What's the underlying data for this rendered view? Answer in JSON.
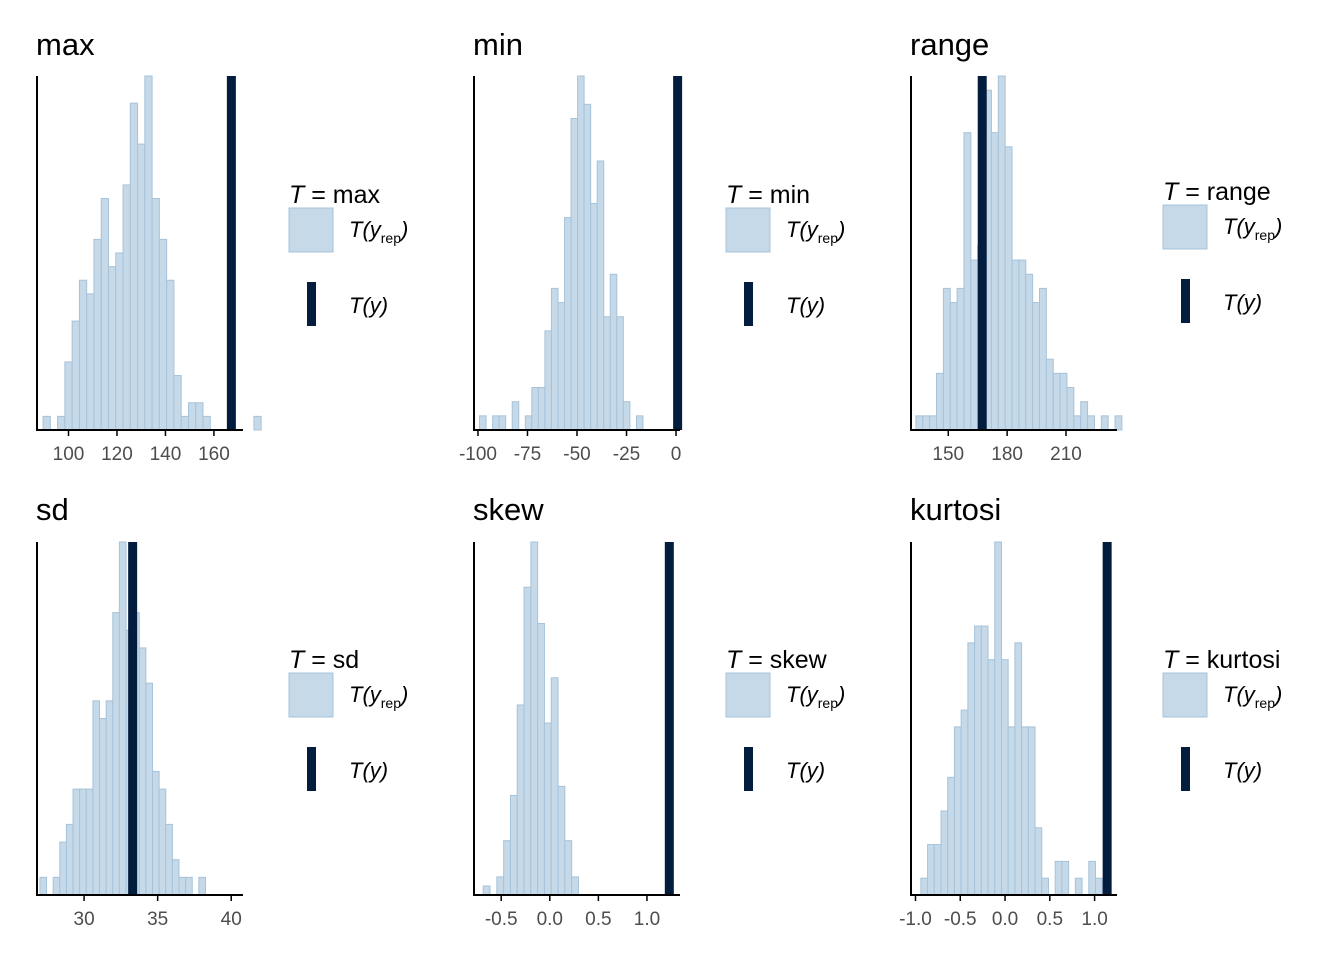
{
  "colors": {
    "hist_fill": "#c6d9e8",
    "hist_stroke": "#a6c3da",
    "observed": "#031d3e",
    "axis": "#000000",
    "tick_text": "#4d4d4d",
    "title_text": "#000000"
  },
  "legend": {
    "rep_label": "T(y_rep)",
    "obs_label": "T(y)",
    "title_prefix": "T ="
  },
  "chart_data": [
    {
      "type": "bar",
      "title": "max",
      "legend_title": "max",
      "xlim": [
        87,
        172
      ],
      "ticks": [
        100,
        120,
        140,
        160
      ],
      "tick_labels": [
        "100",
        "120",
        "140",
        "160"
      ],
      "bin_start": 89.5,
      "bin_width": 3.0,
      "counts": [
        1,
        0,
        1,
        5,
        8,
        11,
        10,
        14,
        17,
        12,
        13,
        18,
        24,
        21,
        26,
        17,
        14,
        11,
        4,
        1,
        2,
        2,
        1,
        0,
        0,
        0,
        0,
        0,
        0,
        1
      ],
      "observed": 167.2,
      "grid": false
    },
    {
      "type": "bar",
      "title": "min",
      "legend_title": "min",
      "xlim": [
        -102,
        2
      ],
      "ticks": [
        -100,
        -75,
        -50,
        -25,
        0
      ],
      "tick_labels": [
        "-100",
        "-75",
        "-50",
        "-25",
        "0"
      ],
      "bin_start": -99.2,
      "bin_width": 3.3,
      "counts": [
        1,
        0,
        1,
        1,
        0,
        2,
        0,
        1,
        3,
        3,
        7,
        10,
        9,
        15,
        22,
        25,
        23,
        16,
        19,
        8,
        11,
        8,
        2,
        0,
        1,
        0,
        0,
        0,
        0,
        0
      ],
      "observed": 0.8,
      "grid": false
    },
    {
      "type": "bar",
      "title": "range",
      "legend_title": "range",
      "xlim": [
        131,
        236
      ],
      "ticks": [
        150,
        180,
        210
      ],
      "tick_labels": [
        "150",
        "180",
        "210"
      ],
      "bin_start": 133.5,
      "bin_width": 3.5,
      "counts": [
        1,
        1,
        1,
        4,
        10,
        9,
        10,
        21,
        12,
        13,
        24,
        21,
        25,
        20,
        12,
        12,
        11,
        9,
        10,
        5,
        4,
        4,
        3,
        1,
        2,
        1,
        0,
        1,
        0,
        1
      ],
      "observed": 167.3,
      "grid": false
    },
    {
      "type": "bar",
      "title": "sd",
      "legend_title": "sd",
      "xlim": [
        26.8,
        40.8
      ],
      "ticks": [
        30,
        35,
        40
      ],
      "tick_labels": [
        "30",
        "35",
        "40"
      ],
      "bin_start": 27.0,
      "bin_width": 0.45,
      "counts": [
        1,
        0,
        1,
        3,
        4,
        6,
        6,
        6,
        11,
        10,
        11,
        16,
        20,
        15,
        16,
        14,
        12,
        7,
        6,
        4,
        2,
        1,
        1,
        0,
        1,
        0,
        0,
        0,
        0,
        0
      ],
      "observed": 33.3,
      "grid": false
    },
    {
      "type": "bar",
      "title": "skew",
      "legend_title": "skew",
      "xlim": [
        -0.78,
        1.34
      ],
      "ticks": [
        -0.5,
        0.0,
        0.5,
        1.0
      ],
      "tick_labels": [
        "-0.5",
        "0.0",
        "0.5",
        "1.0"
      ],
      "bin_start": -0.685,
      "bin_width": 0.07,
      "counts": [
        1,
        0,
        2,
        6,
        11,
        21,
        34,
        39,
        30,
        19,
        24,
        12,
        6,
        2,
        0,
        0,
        0,
        0,
        0,
        0,
        0,
        0,
        0,
        0,
        0,
        0,
        0,
        0,
        0,
        0
      ],
      "observed": 1.23,
      "grid": false
    },
    {
      "type": "bar",
      "title": "kurtosi",
      "legend_title": "kurtosi",
      "xlim": [
        -1.05,
        1.25
      ],
      "ticks": [
        -1.0,
        -0.5,
        0.0,
        0.5,
        1.0
      ],
      "tick_labels": [
        "-1.0",
        "-0.5",
        "0.0",
        "0.5",
        "1.0"
      ],
      "bin_start": -0.94,
      "bin_width": 0.075,
      "counts": [
        1,
        3,
        3,
        5,
        7,
        10,
        11,
        15,
        16,
        16,
        14,
        21,
        14,
        10,
        15,
        10,
        10,
        4,
        1,
        0,
        2,
        2,
        0,
        1,
        0,
        2,
        1,
        0,
        0,
        0
      ],
      "observed": 1.14,
      "grid": false
    }
  ]
}
